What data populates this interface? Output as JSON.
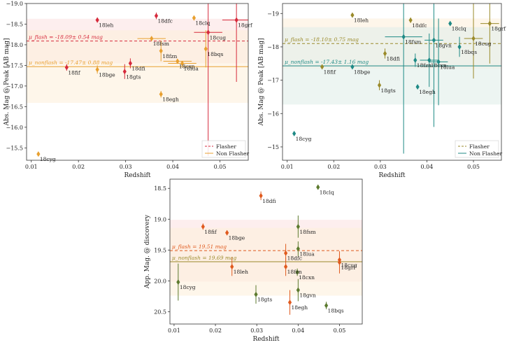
{
  "colors": {
    "flasher": "#d62a3c",
    "nonflash_orange": "#e8a030",
    "teal": "#1f8a86",
    "olive": "#9a8a2a",
    "green": "#5c7a2e",
    "orange_red": "#e05a1e",
    "flash_band": "#fbe3e3",
    "nonflash_band": "#fdf0dc",
    "teal_band": "#e1efea"
  },
  "chart_data": [
    {
      "id": "p1",
      "type": "scatter",
      "title": "",
      "xlabel": "Redshift",
      "ylabel": "Abs. Mag @ Peak [AB mag]",
      "xlim": [
        0.009,
        0.056
      ],
      "ylim": [
        -19.0,
        -15.2
      ],
      "y_inverted": true,
      "xticks": [
        0.01,
        0.02,
        0.03,
        0.04,
        0.05
      ],
      "xtick_labels": [
        "0.01",
        "0.02",
        "0.03",
        "0.04",
        "0.05"
      ],
      "yticks": [
        -19.0,
        -18.5,
        -18.0,
        -17.5,
        -17.0,
        -16.5,
        -16.0,
        -15.5
      ],
      "ytick_labels": [
        "−19.0",
        "−18.5",
        "−18.0",
        "−17.5",
        "−17.0",
        "−16.5",
        "−16.0",
        "−15.5"
      ],
      "legend": {
        "position": "bottom-right",
        "entries": [
          {
            "label": "Flasher",
            "style": "dashed",
            "color_key": "flasher"
          },
          {
            "label": "Non Flasher",
            "style": "solid",
            "color_key": "nonflash_orange"
          }
        ]
      },
      "mean_lines": [
        {
          "label": "μ_flash = -18.09± 0.54 mag",
          "value": -18.09,
          "sigma": 0.54,
          "style": "dashed",
          "color_key": "flasher",
          "band_key": "flash_band"
        },
        {
          "label": "μ_nonflash = -17.47± 0.88 mag",
          "value": -17.47,
          "sigma": 0.88,
          "style": "solid",
          "color_key": "nonflash_orange",
          "band_key": "nonflash_band"
        }
      ],
      "points": [
        {
          "name": "18cyg",
          "x": 0.0115,
          "y": -15.35,
          "yerr": 0,
          "xerr": 0,
          "color_key": "nonflash_orange"
        },
        {
          "name": "18fif",
          "x": 0.0175,
          "y": -17.45,
          "yerr": 0.08,
          "xerr": 0,
          "color_key": "flasher"
        },
        {
          "name": "18leh",
          "x": 0.024,
          "y": -18.6,
          "yerr": 0.06,
          "xerr": 0,
          "color_key": "flasher"
        },
        {
          "name": "18bge",
          "x": 0.024,
          "y": -17.4,
          "yerr": 0.1,
          "xerr": 0,
          "color_key": "nonflash_orange"
        },
        {
          "name": "18gts",
          "x": 0.0298,
          "y": -17.35,
          "yerr": 0.18,
          "xerr": 0,
          "color_key": "flasher"
        },
        {
          "name": "18dfi",
          "x": 0.031,
          "y": -17.55,
          "yerr": 0.12,
          "xerr": 0,
          "color_key": "flasher"
        },
        {
          "name": "18dfc",
          "x": 0.0365,
          "y": -18.7,
          "yerr": 0.08,
          "xerr": 0,
          "color_key": "flasher"
        },
        {
          "name": "18fsm",
          "x": 0.0355,
          "y": -18.15,
          "yerr": 0.03,
          "xerr": 0.003,
          "color_key": "nonflash_orange"
        },
        {
          "name": "18fzn",
          "x": 0.0375,
          "y": -17.85,
          "yerr": 0.25,
          "xerr": 0,
          "color_key": "nonflash_orange"
        },
        {
          "name": "18egh",
          "x": 0.0375,
          "y": -16.8,
          "yerr": 0.08,
          "xerr": 0,
          "color_key": "nonflash_orange"
        },
        {
          "name": "18cxn",
          "x": 0.041,
          "y": -17.6,
          "yerr": 0.05,
          "xerr": 0.003,
          "color_key": "nonflash_orange"
        },
        {
          "name": "18iua",
          "x": 0.042,
          "y": -17.55,
          "yerr": 0.05,
          "xerr": 0.003,
          "color_key": "nonflash_orange"
        },
        {
          "name": "18clq",
          "x": 0.0445,
          "y": -18.65,
          "yerr": 0,
          "xerr": 0,
          "color_key": "nonflash_orange"
        },
        {
          "name": "18cug",
          "x": 0.0475,
          "y": -18.3,
          "yerr": 3.0,
          "xerr": 0.003,
          "color_key": "flasher"
        },
        {
          "name": "18bqs",
          "x": 0.047,
          "y": -17.9,
          "yerr": 0.45,
          "xerr": 0,
          "color_key": "nonflash_orange"
        },
        {
          "name": "18grf",
          "x": 0.0535,
          "y": -18.6,
          "yerr": 1.5,
          "xerr": 0.003,
          "color_key": "flasher"
        }
      ]
    },
    {
      "id": "p2",
      "type": "scatter",
      "title": "",
      "xlabel": "Redshift",
      "ylabel": "Abs. Mag @ Peak [AB mag]",
      "xlim": [
        0.009,
        0.056
      ],
      "ylim": [
        -19.3,
        -14.6
      ],
      "y_inverted": true,
      "xticks": [
        0.01,
        0.02,
        0.03,
        0.04,
        0.05
      ],
      "xtick_labels": [
        "0.01",
        "0.02",
        "0.03",
        "0.04",
        "0.05"
      ],
      "yticks": [
        -19,
        -18,
        -17,
        -16,
        -15
      ],
      "ytick_labels": [
        "−19",
        "−18",
        "−17",
        "−16",
        "−15"
      ],
      "legend": {
        "position": "bottom-right",
        "entries": [
          {
            "label": "Flasher",
            "style": "dashed",
            "color_key": "olive"
          },
          {
            "label": "Non Flasher",
            "style": "solid",
            "color_key": "teal"
          }
        ]
      },
      "mean_lines": [
        {
          "label": "μ_flash = -18.10± 0.75 mag",
          "value": -18.1,
          "sigma": 0.75,
          "style": "dashed",
          "color_key": "olive",
          "band_key": "nonflash_band"
        },
        {
          "label": "μ_nonflash = -17.43± 1.16 mag",
          "value": -17.43,
          "sigma": 1.16,
          "style": "solid",
          "color_key": "teal",
          "band_key": "teal_band"
        }
      ],
      "points": [
        {
          "name": "18cyg",
          "x": 0.0115,
          "y": -15.4,
          "yerr": 0,
          "xerr": 0,
          "color_key": "teal"
        },
        {
          "name": "18fif",
          "x": 0.0175,
          "y": -17.4,
          "yerr": 0.06,
          "xerr": 0,
          "color_key": "olive"
        },
        {
          "name": "18leh",
          "x": 0.024,
          "y": -18.95,
          "yerr": 0.06,
          "xerr": 0,
          "color_key": "olive"
        },
        {
          "name": "18bge",
          "x": 0.024,
          "y": -17.4,
          "yerr": 0.06,
          "xerr": 0,
          "color_key": "teal"
        },
        {
          "name": "18gts",
          "x": 0.0298,
          "y": -16.85,
          "yerr": 0.15,
          "xerr": 0,
          "color_key": "olive"
        },
        {
          "name": "18dfi",
          "x": 0.031,
          "y": -17.8,
          "yerr": 0.15,
          "xerr": 0,
          "color_key": "olive"
        },
        {
          "name": "18dfc",
          "x": 0.0365,
          "y": -18.8,
          "yerr": 0.08,
          "xerr": 0,
          "color_key": "olive"
        },
        {
          "name": "18fsm",
          "x": 0.035,
          "y": -18.3,
          "yerr": 3.5,
          "xerr": 0.004,
          "color_key": "teal"
        },
        {
          "name": "18fzn",
          "x": 0.0375,
          "y": -17.6,
          "yerr": 0.2,
          "xerr": 0,
          "color_key": "teal"
        },
        {
          "name": "18egh",
          "x": 0.038,
          "y": -16.8,
          "yerr": 0.06,
          "xerr": 0,
          "color_key": "teal"
        },
        {
          "name": "18cxn",
          "x": 0.0405,
          "y": -17.6,
          "yerr": 0.8,
          "xerr": 0.002,
          "color_key": "teal"
        },
        {
          "name": "18gvn",
          "x": 0.0415,
          "y": -18.2,
          "yerr": 2.6,
          "xerr": 0.002,
          "color_key": "teal"
        },
        {
          "name": "18iua",
          "x": 0.0425,
          "y": -17.55,
          "yerr": 1.3,
          "xerr": 0.002,
          "color_key": "teal"
        },
        {
          "name": "18clq",
          "x": 0.045,
          "y": -18.7,
          "yerr": 0,
          "xerr": 0,
          "color_key": "teal"
        },
        {
          "name": "18bqs",
          "x": 0.047,
          "y": -18.0,
          "yerr": 0.3,
          "xerr": 0,
          "color_key": "teal"
        },
        {
          "name": "18cug",
          "x": 0.05,
          "y": -18.25,
          "yerr": 1.2,
          "xerr": 0.002,
          "color_key": "olive"
        },
        {
          "name": "18grf",
          "x": 0.0535,
          "y": -18.7,
          "yerr": 1.2,
          "xerr": 0.002,
          "color_key": "olive"
        }
      ]
    },
    {
      "id": "p3",
      "type": "scatter",
      "title": "",
      "xlabel": "Redshift",
      "ylabel": "App. Mag. @ discovery",
      "xlim": [
        0.009,
        0.0555
      ],
      "ylim": [
        18.35,
        20.7
      ],
      "y_inverted": false,
      "xticks": [
        0.01,
        0.02,
        0.03,
        0.04,
        0.05
      ],
      "xtick_labels": [
        "0.01",
        "0.02",
        "0.03",
        "0.04",
        "0.05"
      ],
      "yticks": [
        18.5,
        19.0,
        19.5,
        20.0,
        20.5
      ],
      "ytick_labels": [
        "18.5",
        "19.0",
        "19.5",
        "20.0",
        "20.5"
      ],
      "legend": null,
      "mean_lines": [
        {
          "label": "μ_flash = 19.51 mag",
          "value": 19.51,
          "sigma": 0.5,
          "style": "dashed",
          "color_key": "orange_red",
          "band_key": "flash_band"
        },
        {
          "label": "μ_nonflash = 19.69 mag",
          "value": 19.69,
          "sigma": 0.55,
          "style": "solid",
          "color_key": "olive",
          "band_key": "nonflash_band"
        }
      ],
      "points": [
        {
          "name": "18cyg",
          "x": 0.011,
          "y": 20.02,
          "yerr": 0.3,
          "xerr": 0,
          "color_key": "green"
        },
        {
          "name": "18fif",
          "x": 0.017,
          "y": 19.12,
          "yerr": 0.05,
          "xerr": 0,
          "color_key": "orange_red"
        },
        {
          "name": "18bge",
          "x": 0.0228,
          "y": 19.22,
          "yerr": 0.04,
          "xerr": 0,
          "color_key": "orange_red"
        },
        {
          "name": "18leh",
          "x": 0.024,
          "y": 19.77,
          "yerr": 0.15,
          "xerr": 0,
          "color_key": "orange_red"
        },
        {
          "name": "18dfi",
          "x": 0.031,
          "y": 18.62,
          "yerr": 0.07,
          "xerr": 0,
          "color_key": "orange_red"
        },
        {
          "name": "18gts",
          "x": 0.0298,
          "y": 20.22,
          "yerr": 0.15,
          "xerr": 0,
          "color_key": "green"
        },
        {
          "name": "18dfc",
          "x": 0.037,
          "y": 19.55,
          "yerr": 0.15,
          "xerr": 0,
          "color_key": "orange_red"
        },
        {
          "name": "18fzn",
          "x": 0.037,
          "y": 19.77,
          "yerr": 0.15,
          "xerr": 0,
          "color_key": "orange_red"
        },
        {
          "name": "18egh",
          "x": 0.038,
          "y": 20.35,
          "yerr": 0.2,
          "xerr": 0,
          "color_key": "orange_red"
        },
        {
          "name": "18cxn",
          "x": 0.0398,
          "y": 19.86,
          "yerr": 0.06,
          "xerr": 0,
          "color_key": "green"
        },
        {
          "name": "18fsm",
          "x": 0.04,
          "y": 19.12,
          "yerr": 0.18,
          "xerr": 0,
          "color_key": "green"
        },
        {
          "name": "18iua",
          "x": 0.04,
          "y": 19.48,
          "yerr": 0.12,
          "xerr": 0,
          "color_key": "green"
        },
        {
          "name": "18gvn",
          "x": 0.04,
          "y": 20.15,
          "yerr": 0.18,
          "xerr": 0,
          "color_key": "green"
        },
        {
          "name": "18clq",
          "x": 0.0448,
          "y": 18.48,
          "yerr": 0.04,
          "xerr": 0,
          "color_key": "green"
        },
        {
          "name": "18bqs",
          "x": 0.0468,
          "y": 20.4,
          "yerr": 0.06,
          "xerr": 0,
          "color_key": "green"
        },
        {
          "name": "18cug",
          "x": 0.05,
          "y": 19.66,
          "yerr": 0.1,
          "xerr": 0,
          "color_key": "orange_red"
        },
        {
          "name": "18grf",
          "x": 0.05,
          "y": 19.7,
          "yerr": 0.18,
          "xerr": 0,
          "color_key": "orange_red"
        }
      ]
    }
  ]
}
